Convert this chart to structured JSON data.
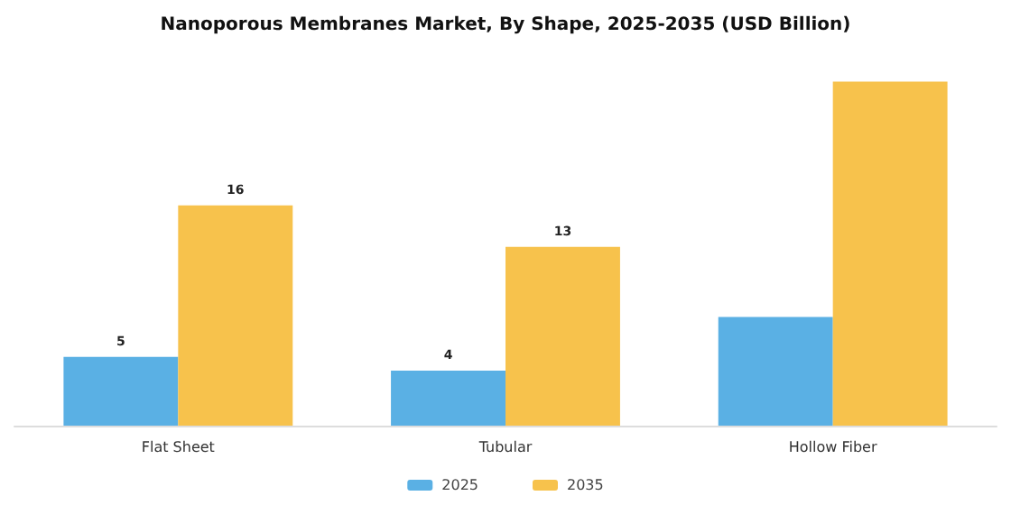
{
  "chart_data": {
    "type": "bar",
    "title": "Nanoporous Membranes Market, By Shape, 2025-2035 (USD Billion)",
    "categories": [
      "Flat Sheet",
      "Tubular",
      "Hollow Fiber"
    ],
    "series": [
      {
        "name": "2025",
        "color": "#5ab0e4",
        "values": [
          5,
          4,
          7.9
        ],
        "value_labels": [
          "5",
          "4",
          null
        ]
      },
      {
        "name": "2035",
        "color": "#f7c24c",
        "values": [
          16,
          13,
          25
        ],
        "value_labels": [
          "16",
          "13",
          null
        ]
      }
    ],
    "tick_labels": "x",
    "legend": "bottom"
  }
}
